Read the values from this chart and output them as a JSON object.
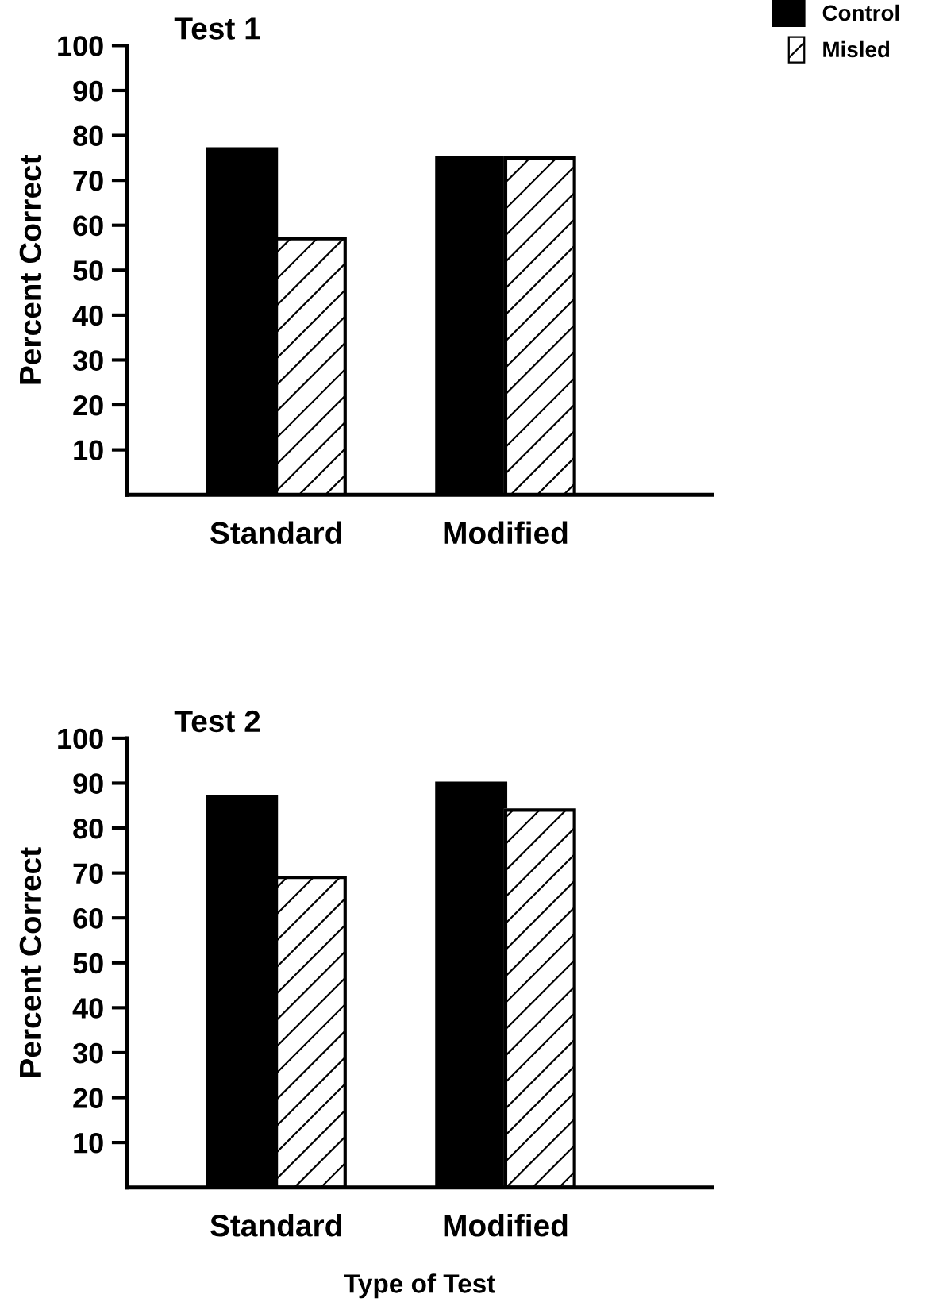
{
  "chart_data": [
    {
      "type": "bar",
      "title": "Test 1",
      "ylabel": "Percent Correct",
      "categories": [
        "Standard",
        "Modified"
      ],
      "series": [
        {
          "name": "Control",
          "color": "#000000",
          "values": [
            77,
            75
          ]
        },
        {
          "name": "Misled",
          "color": "#ffffff",
          "values": [
            57,
            75
          ]
        }
      ],
      "ylim": [
        0,
        100
      ],
      "yticks": [
        10,
        20,
        30,
        40,
        50,
        60,
        70,
        80,
        90,
        100
      ],
      "grid": false,
      "legend": "top right"
    },
    {
      "type": "bar",
      "title": "Test 2",
      "ylabel": "Percent Correct",
      "xlabel": "Type of Test",
      "categories": [
        "Standard",
        "Modified"
      ],
      "series": [
        {
          "color": "#000000",
          "values": [
            87,
            90
          ]
        },
        {
          "color": "#ffffff",
          "values": [
            69,
            84
          ]
        }
      ],
      "ylim": [
        0,
        100
      ],
      "yticks": [
        10,
        20,
        30,
        40,
        50,
        60,
        70,
        80,
        90,
        100
      ],
      "grid": false
    }
  ]
}
